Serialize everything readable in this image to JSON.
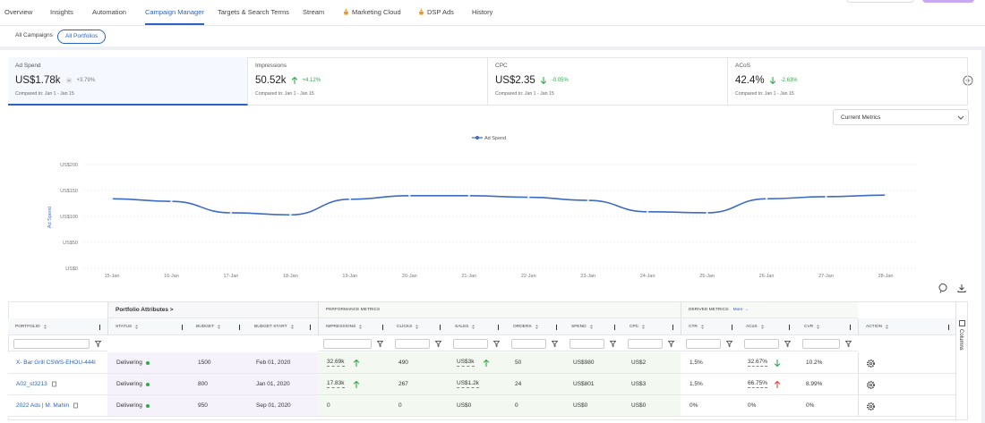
{
  "nav": {
    "items": [
      {
        "label": "Overview"
      },
      {
        "label": "Insights"
      },
      {
        "label": "Automation"
      },
      {
        "label": "Campaign Manager"
      },
      {
        "label": "Targets & Search Terms"
      },
      {
        "label": "Stream"
      },
      {
        "label": "Marketing Cloud",
        "icon": true
      },
      {
        "label": "DSP Ads",
        "icon": true
      },
      {
        "label": "History"
      }
    ],
    "active": 3
  },
  "sub_tabs": {
    "items": [
      "All Campaigns",
      "All Portfolios"
    ],
    "active": 1
  },
  "metric_cards": [
    {
      "label": "Ad Spend",
      "value": "US$1.78k",
      "trend": "flat",
      "change": "+3.79%",
      "change_color": "#777777",
      "compared": "Compared to: Jan 1 - Jan 15",
      "selected": true
    },
    {
      "label": "Impressions",
      "value": "50.52k",
      "trend": "up",
      "change": "+4.12%",
      "change_color": "#2eaa4a",
      "compared": "Compared to: Jan 1 - Jan 15"
    },
    {
      "label": "CPC",
      "value": "US$2.35",
      "trend": "down",
      "change": "-0.05%",
      "change_color": "#2eaa4a",
      "compared": "Compared to: Jan 1 - Jan 15"
    },
    {
      "label": "ACoS",
      "value": "42.4%",
      "trend": "down",
      "change": "-2.63%",
      "change_color": "#2eaa4a",
      "compared": "Compared to: Jan 1 - Jan 15"
    }
  ],
  "metric_selector": "Current Metrics",
  "chart_data": {
    "type": "line",
    "y_label": "Ad Spend",
    "categories": [
      "15-Jan",
      "16-Jan",
      "17-Jan",
      "18-Jan",
      "19-Jan",
      "20-Jan",
      "21-Jan",
      "22-Jan",
      "23-Jan",
      "24-Jan",
      "25-Jan",
      "26-Jan",
      "27-Jan",
      "28-Jan"
    ],
    "series": [
      {
        "name": "Ad Spend",
        "color": "#3d6bc4",
        "values": [
          134,
          129,
          107,
          103,
          133,
          140,
          140,
          137,
          131,
          109,
          107,
          134,
          138,
          141
        ]
      }
    ],
    "ylim": [
      0,
      200
    ],
    "yticks": [
      {
        "value": 0,
        "label": "US$0"
      },
      {
        "value": 50,
        "label": "US$50"
      },
      {
        "value": 100,
        "label": "US$100"
      },
      {
        "value": 150,
        "label": "US$150"
      },
      {
        "value": 200,
        "label": "US$200"
      }
    ],
    "grid": true,
    "legend": "top"
  },
  "table": {
    "groups": [
      "Portfolio Attributes >",
      "PERFORMANCE METRICS",
      "DERIVED METRICS:"
    ],
    "more": "More →",
    "columns": [
      "PORTFOLIO",
      "STATUS",
      "BUDGET",
      "BUDGET START",
      "IMPRESSIONS",
      "CLICKS",
      "SALES",
      "ORDERS",
      "SPEND",
      "CPC",
      "CTR",
      "ACoS",
      "CVR",
      "ACTION"
    ],
    "rows": [
      [
        {
          "text": "X- Bar Grill CSWS-EHOU-444I"
        },
        "Delivering",
        "1500",
        "Feb 01, 2020",
        {
          "text": "32.69k",
          "arrow": "up",
          "arrow_color": "#2eaa4a",
          "underline": true
        },
        "490",
        {
          "text": "US$3k",
          "arrow": "up",
          "arrow_color": "#2eaa4a",
          "underline": true
        },
        "50",
        "US$980",
        "US$2",
        "1.5%",
        {
          "text": "32.67%",
          "arrow": "down",
          "arrow_color": "#2eaa4a",
          "underline": true
        },
        "10.2%"
      ],
      [
        {
          "text": "A02_st3213",
          "copy": true
        },
        "Delivering",
        "800",
        "Jan 01, 2020",
        {
          "text": "17.83k",
          "arrow": "up",
          "arrow_color": "#2eaa4a",
          "underline": true
        },
        "267",
        {
          "text": "US$1.2k",
          "underline": true
        },
        "24",
        "US$801",
        "US$3",
        "1.5%",
        {
          "text": "66.75%",
          "arrow": "up",
          "arrow_color": "#e0443a",
          "underline": true
        },
        "8.99%"
      ],
      [
        {
          "text": "2022 Ads | M. Mahin",
          "copy": true
        },
        "Delivering",
        "950",
        "Sep 01, 2020",
        "0",
        "0",
        "US$0",
        "0",
        "US$0",
        "US$0",
        "0%",
        "0%",
        "0%"
      ]
    ],
    "side_label": "Columns"
  }
}
